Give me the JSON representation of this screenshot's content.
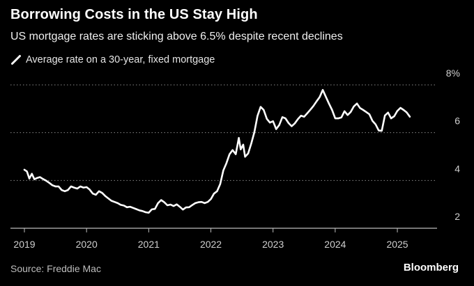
{
  "header": {
    "title": "Borrowing Costs in the US Stay High",
    "subtitle": "US mortgage rates are sticking above 6.5% despite recent declines"
  },
  "footer": {
    "source": "Source: Freddie Mac",
    "brand": "Bloomberg"
  },
  "colors": {
    "background": "#000000",
    "line": "#ffffff",
    "grid": "#8a8a8a",
    "axis_text": "#cfcfcf"
  },
  "chart_data": {
    "type": "line",
    "title": "Borrowing Costs in the US Stay High",
    "subtitle": "US mortgage rates are sticking above 6.5% despite recent declines",
    "xlabel": "",
    "ylabel": "",
    "ylim": [
      2,
      8
    ],
    "xlim": [
      2019.0,
      2025.65
    ],
    "grid": true,
    "legend_position": "top-left",
    "y_ticks": [
      {
        "value": 2,
        "label": "2"
      },
      {
        "value": 4,
        "label": "4"
      },
      {
        "value": 6,
        "label": "6"
      },
      {
        "value": 8,
        "label": "8%"
      }
    ],
    "x_ticks": [
      {
        "value": 2019,
        "label": "2019"
      },
      {
        "value": 2020,
        "label": "2020"
      },
      {
        "value": 2021,
        "label": "2021"
      },
      {
        "value": 2022,
        "label": "2022"
      },
      {
        "value": 2023,
        "label": "2023"
      },
      {
        "value": 2024,
        "label": "2024"
      },
      {
        "value": 2025,
        "label": "2025"
      }
    ],
    "series": [
      {
        "name": "Average rate on a 30-year, fixed mortgage",
        "x": [
          2019.0,
          2019.04,
          2019.08,
          2019.12,
          2019.16,
          2019.2,
          2019.25,
          2019.3,
          2019.35,
          2019.4,
          2019.45,
          2019.5,
          2019.55,
          2019.6,
          2019.65,
          2019.7,
          2019.75,
          2019.8,
          2019.85,
          2019.9,
          2019.95,
          2020.0,
          2020.05,
          2020.1,
          2020.15,
          2020.2,
          2020.25,
          2020.3,
          2020.35,
          2020.4,
          2020.45,
          2020.5,
          2020.55,
          2020.6,
          2020.65,
          2020.7,
          2020.75,
          2020.8,
          2020.85,
          2020.9,
          2020.95,
          2021.0,
          2021.05,
          2021.1,
          2021.15,
          2021.2,
          2021.25,
          2021.3,
          2021.35,
          2021.4,
          2021.45,
          2021.5,
          2021.55,
          2021.6,
          2021.65,
          2021.7,
          2021.75,
          2021.8,
          2021.85,
          2021.9,
          2021.95,
          2022.0,
          2022.05,
          2022.1,
          2022.15,
          2022.2,
          2022.25,
          2022.3,
          2022.35,
          2022.4,
          2022.45,
          2022.48,
          2022.52,
          2022.55,
          2022.6,
          2022.65,
          2022.7,
          2022.75,
          2022.8,
          2022.85,
          2022.9,
          2022.95,
          2023.0,
          2023.05,
          2023.1,
          2023.15,
          2023.2,
          2023.25,
          2023.3,
          2023.35,
          2023.4,
          2023.45,
          2023.5,
          2023.55,
          2023.6,
          2023.65,
          2023.7,
          2023.75,
          2023.8,
          2023.85,
          2023.9,
          2023.95,
          2024.0,
          2024.05,
          2024.1,
          2024.15,
          2024.2,
          2024.25,
          2024.3,
          2024.35,
          2024.4,
          2024.45,
          2024.5,
          2024.55,
          2024.6,
          2024.65,
          2024.7,
          2024.75,
          2024.8,
          2024.85,
          2024.9,
          2024.95,
          2025.0,
          2025.05,
          2025.1,
          2025.15,
          2025.2
        ],
        "y": [
          4.45,
          4.38,
          4.08,
          4.28,
          4.05,
          4.1,
          4.14,
          4.06,
          3.99,
          3.9,
          3.8,
          3.75,
          3.75,
          3.6,
          3.55,
          3.6,
          3.75,
          3.7,
          3.66,
          3.75,
          3.7,
          3.72,
          3.62,
          3.45,
          3.4,
          3.55,
          3.48,
          3.35,
          3.25,
          3.15,
          3.1,
          3.05,
          2.98,
          2.95,
          2.88,
          2.9,
          2.85,
          2.8,
          2.75,
          2.72,
          2.67,
          2.65,
          2.79,
          2.81,
          3.05,
          3.18,
          3.09,
          2.96,
          2.99,
          2.93,
          3.0,
          2.9,
          2.78,
          2.87,
          2.88,
          2.97,
          3.05,
          3.09,
          3.1,
          3.05,
          3.1,
          3.22,
          3.45,
          3.55,
          3.85,
          4.42,
          4.72,
          5.1,
          5.27,
          5.1,
          5.78,
          5.3,
          5.5,
          4.99,
          5.13,
          5.55,
          6.02,
          6.7,
          7.08,
          6.95,
          6.58,
          6.42,
          6.48,
          6.15,
          6.32,
          6.65,
          6.6,
          6.4,
          6.27,
          6.39,
          6.57,
          6.71,
          6.67,
          6.81,
          6.96,
          7.12,
          7.31,
          7.49,
          7.79,
          7.5,
          7.22,
          6.95,
          6.6,
          6.6,
          6.64,
          6.9,
          6.74,
          6.87,
          7.1,
          7.22,
          7.03,
          6.95,
          6.86,
          6.77,
          6.49,
          6.35,
          6.09,
          6.08,
          6.72,
          6.84,
          6.6,
          6.69,
          6.91,
          7.04,
          6.95,
          6.85,
          6.67
        ]
      }
    ]
  }
}
